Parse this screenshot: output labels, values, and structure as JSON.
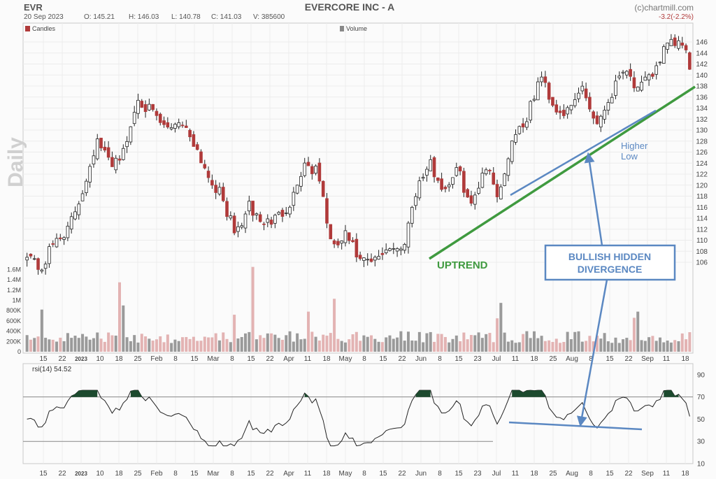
{
  "header": {
    "ticker": "EVR",
    "title": "EVERCORE INC - A",
    "credit": "(c)chartmill.com",
    "date": "20 Sep 2023",
    "ohlcv": {
      "open": "O: 145.21",
      "high": "H: 146.03",
      "low": "L: 140.78",
      "close": "C: 141.03",
      "volume": "V: 385600"
    },
    "change": "-3.2(-2.2%)"
  },
  "legend": {
    "candles": "Candles",
    "volume": "Volume"
  },
  "side_label": "Daily",
  "colors": {
    "up": "#ffffff",
    "down": "#b03a3a",
    "vol_up": "#9a9a9a",
    "vol_down": "#e3b3b3",
    "uptrend": "#3f9a3f",
    "annotation": "#5b88c2",
    "rsi": "#222222",
    "rsi_fill": "#1c4a2e"
  },
  "annotations": {
    "uptrend": "UPTREND",
    "higher_low_1": "Higher",
    "higher_low_2": "Low",
    "box_line_1": "BULLISH HIDDEN",
    "box_line_2": "DIVERGENCE"
  },
  "chart_data": [
    {
      "type": "candlestick",
      "name": "Candles",
      "ylim": [
        102,
        148
      ],
      "yticks": [
        106,
        108,
        110,
        112,
        114,
        116,
        118,
        120,
        122,
        124,
        126,
        128,
        130,
        132,
        134,
        136,
        138,
        140,
        142,
        144,
        146
      ],
      "xticks": [
        "15",
        "22",
        "2023",
        "10",
        "18",
        "25",
        "Feb",
        "8",
        "15",
        "Mar",
        "8",
        "15",
        "22",
        "Apr",
        "11",
        "18",
        "May",
        "8",
        "15",
        "22",
        "Jun",
        "8",
        "15",
        "23",
        "Jul",
        "11",
        "18",
        "25",
        "Aug",
        "8",
        "15",
        "22",
        "Sep",
        "11",
        "18"
      ],
      "anchors": [
        108,
        104.5,
        110,
        112,
        119,
        128,
        124,
        126,
        136,
        133,
        130,
        132,
        128,
        122,
        118,
        111,
        116,
        113,
        114,
        117,
        124,
        122,
        108,
        111,
        106,
        106,
        109,
        108,
        119,
        124,
        119,
        123,
        116,
        124,
        118,
        129,
        132,
        140,
        134,
        133,
        138,
        131,
        136,
        142,
        137,
        140,
        145,
        146,
        141.03
      ]
    },
    {
      "type": "bar",
      "name": "Volume",
      "ylim": [
        0,
        1700000
      ],
      "yticks": [
        "200K",
        "400K",
        "600K",
        "800K",
        "1M",
        "1.2M",
        "1.4M",
        "1.6M"
      ],
      "ytick_values": [
        200000,
        400000,
        600000,
        800000,
        1000000,
        1200000,
        1400000,
        1600000
      ],
      "spikes": [
        [
          4,
          820000
        ],
        [
          25,
          1350000
        ],
        [
          26,
          900000
        ],
        [
          56,
          720000
        ],
        [
          61,
          1650000
        ],
        [
          76,
          780000
        ],
        [
          83,
          1030000
        ],
        [
          127,
          650000
        ],
        [
          128,
          950000
        ],
        [
          164,
          660000
        ],
        [
          165,
          780000
        ]
      ]
    },
    {
      "type": "line",
      "name": "rsi(14)",
      "label": "rsi(14) 54.52",
      "ylim": [
        10,
        100
      ],
      "yticks": [
        10,
        30,
        50,
        70,
        90
      ],
      "levels": [
        30,
        70
      ]
    }
  ]
}
